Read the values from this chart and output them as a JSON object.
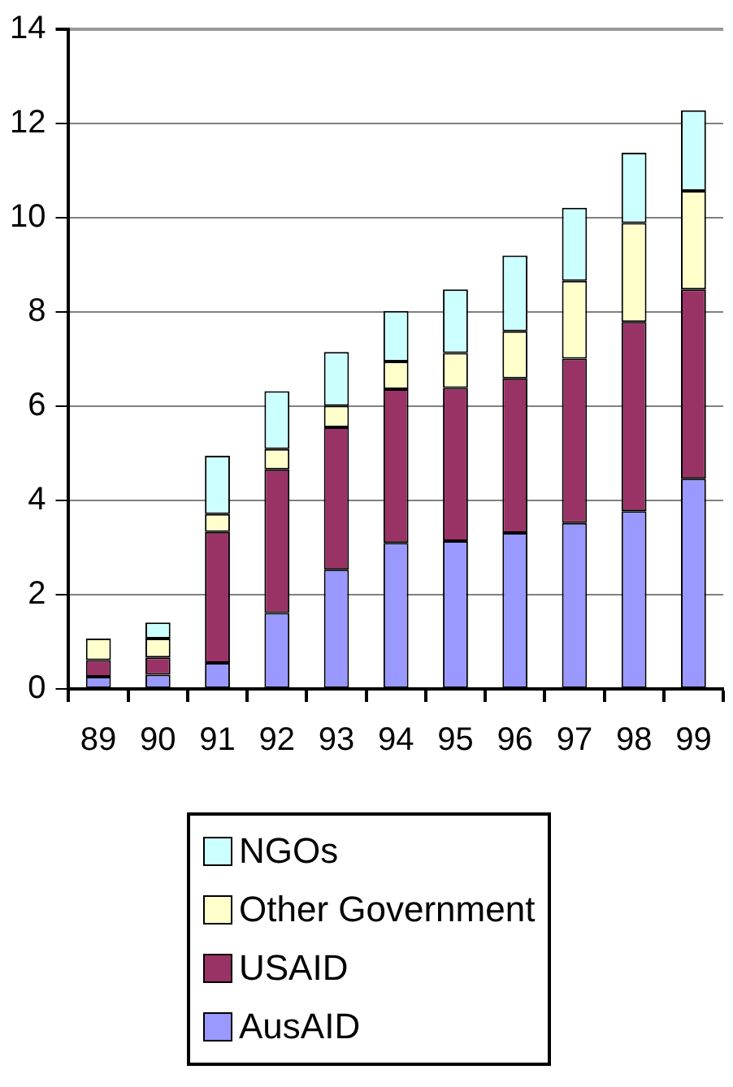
{
  "chart_data": {
    "type": "bar",
    "stacked": true,
    "categories": [
      "89",
      "90",
      "91",
      "92",
      "93",
      "94",
      "95",
      "96",
      "97",
      "98",
      "99"
    ],
    "series": [
      {
        "name": "AusAID",
        "color": "#9999ff",
        "values": [
          0.26,
          0.3,
          0.55,
          1.61,
          2.53,
          3.1,
          3.14,
          3.31,
          3.52,
          3.77,
          4.46
        ]
      },
      {
        "name": "USAID",
        "color": "#993366",
        "values": [
          0.35,
          0.37,
          2.78,
          3.05,
          3.02,
          3.26,
          3.25,
          3.28,
          3.49,
          4.02,
          4.02
        ]
      },
      {
        "name": "Other Government",
        "color": "#ffffcc",
        "values": [
          0.46,
          0.4,
          0.38,
          0.43,
          0.46,
          0.59,
          0.74,
          1.0,
          1.65,
          2.1,
          2.09
        ]
      },
      {
        "name": "NGOs",
        "color": "#ccffff",
        "values": [
          0,
          0.34,
          1.24,
          1.23,
          1.14,
          1.07,
          1.35,
          1.61,
          1.55,
          1.49,
          1.71
        ]
      }
    ],
    "ylim": [
      0,
      14
    ],
    "yticks": [
      0,
      2,
      4,
      6,
      8,
      10,
      12,
      14
    ],
    "grid": "y",
    "legend": "bottom"
  }
}
